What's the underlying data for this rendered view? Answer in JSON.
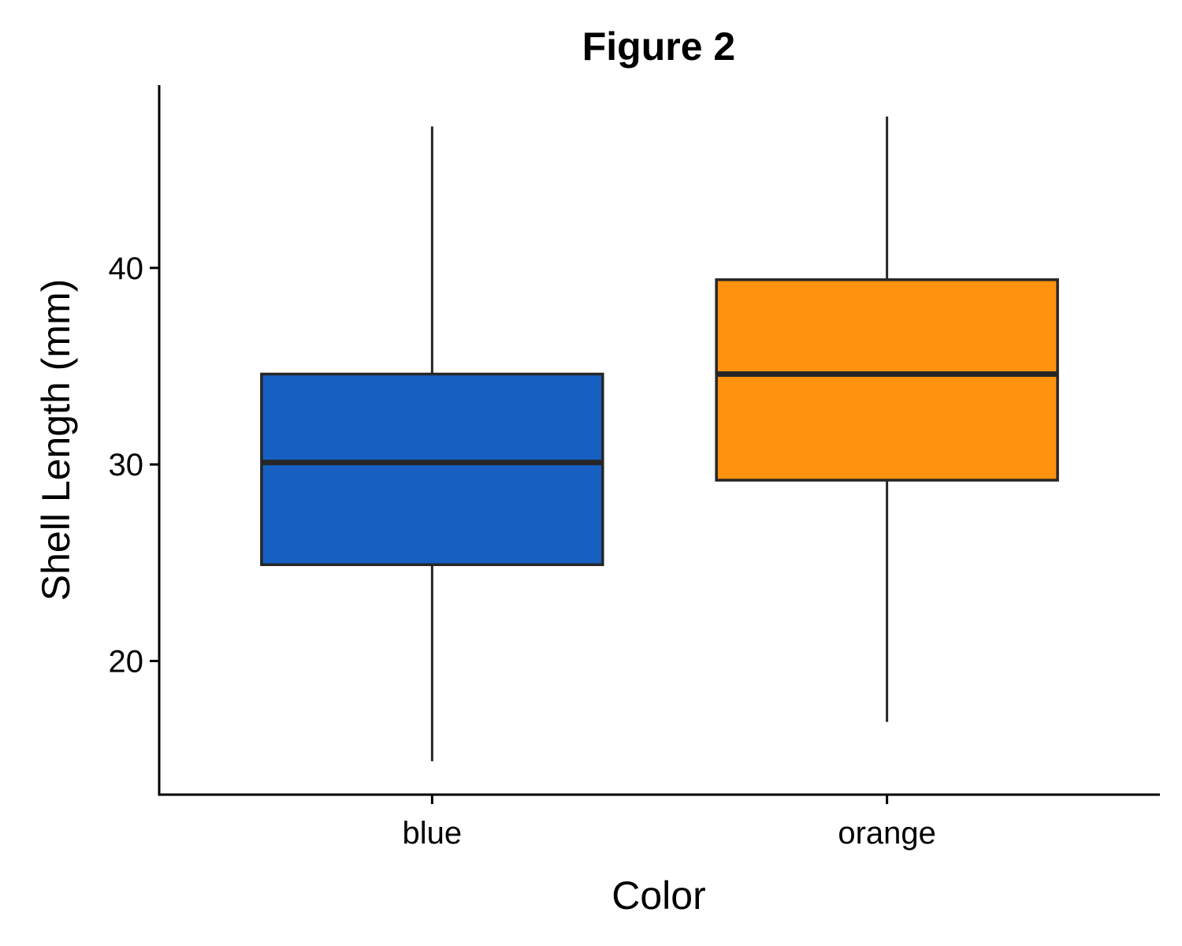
{
  "chart_data": {
    "type": "boxplot",
    "title": "Figure 2",
    "xlabel": "Color",
    "ylabel": "Shell Length (mm)",
    "ylim": [
      13.2,
      49.3
    ],
    "yticks": [
      20,
      30,
      40
    ],
    "categories": [
      "blue",
      "orange"
    ],
    "boxes": [
      {
        "category": "blue",
        "min": 14.9,
        "q1": 24.9,
        "median": 30.1,
        "q3": 34.6,
        "max": 47.2,
        "color": "#1760C2"
      },
      {
        "category": "orange",
        "min": 16.9,
        "q1": 29.2,
        "median": 34.6,
        "q3": 39.4,
        "max": 47.7,
        "color": "#FF930F"
      }
    ],
    "grid": false,
    "legend": "none"
  }
}
